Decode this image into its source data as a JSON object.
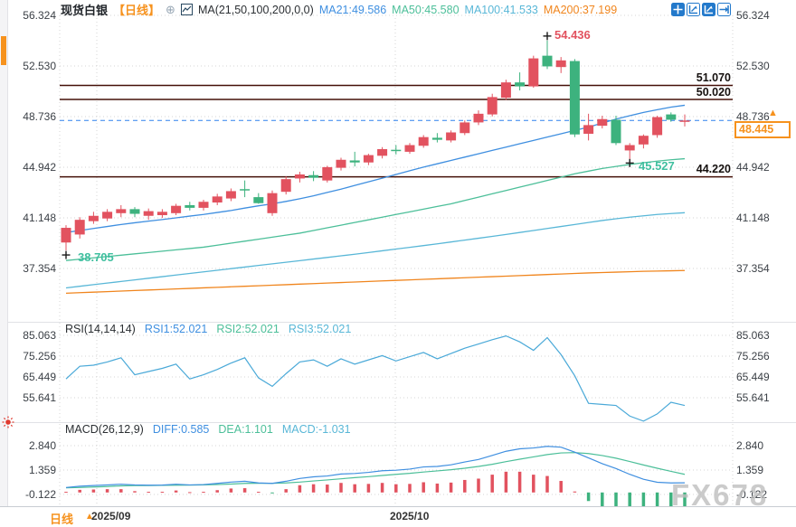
{
  "header": {
    "symbol": "现货白银",
    "period": "【日线】",
    "add_icon": "⊕",
    "ma_settings": "MA(21,50,100,200,0,0)",
    "ma_values": [
      {
        "label": "MA21:49.586",
        "color": "#3f8fe0"
      },
      {
        "label": "MA50:45.580",
        "color": "#4cbf99"
      },
      {
        "label": "MA100:41.533",
        "color": "#59b7d7"
      },
      {
        "label": "MA200:37.199",
        "color": "#f0851d"
      }
    ]
  },
  "toolbar": {
    "icons": [
      "crosshair-move",
      "axis-scale",
      "axis-scale-active",
      "go-to-latest"
    ]
  },
  "rsi_header": {
    "title": "RSI(14,14,14)",
    "values": [
      {
        "label": "RSI1:52.021",
        "color": "#3f8fe0"
      },
      {
        "label": "RSI2:52.021",
        "color": "#4cbf99"
      },
      {
        "label": "RSI3:52.021",
        "color": "#59b7d7"
      }
    ]
  },
  "macd_header": {
    "title": "MACD(26,12,9)",
    "values": [
      {
        "label": "DIFF:0.585",
        "color": "#3f8fe0"
      },
      {
        "label": "DEA:1.101",
        "color": "#4cbf99"
      },
      {
        "label": "MACD:-1.031",
        "color": "#59b7d7"
      }
    ]
  },
  "levels": [
    {
      "label": "51.070",
      "price": 51.07
    },
    {
      "label": "50.020",
      "price": 50.02
    },
    {
      "label": "44.220",
      "price": 44.22
    }
  ],
  "markers": {
    "high": {
      "label": "54.436"
    },
    "low": {
      "label": "38.705"
    },
    "swing_low": {
      "label": "45.527"
    }
  },
  "current_price": {
    "value": "48.445",
    "arrow": "▲"
  },
  "bottom_bar": {
    "period": "日线",
    "arrow": "▲"
  },
  "time_axis": {
    "labels": [
      {
        "text": "2025/09",
        "x": 101
      },
      {
        "text": "2025/10",
        "x": 431
      }
    ]
  },
  "watermark": "FX678",
  "colors": {
    "up_candle": "#e2525f",
    "down_candle": "#3db27e",
    "ma21": "#3f8fe0",
    "ma50": "#4cbf99",
    "ma100": "#59b7d7",
    "ma200": "#f0851d",
    "level_line": "#451008",
    "last_price_line": "#2f80ed",
    "accent_orange": "#f6921e",
    "toolbar_blue": "#2379cb",
    "rsi_line": "#4aa9d8",
    "watermark_gray": "#bfbfbf"
  },
  "chart_data": [
    {
      "type": "candlestick",
      "title": "现货白银 日线 (Spot Silver Daily)",
      "y_ticks": [
        56.324,
        52.53,
        48.736,
        44.942,
        41.148,
        37.354
      ],
      "ylim": [
        33.4,
        57.5
      ],
      "levels": [
        51.07,
        50.02,
        44.22
      ],
      "last_price": 48.445,
      "high_marker": {
        "index": 35,
        "value": 54.436
      },
      "low_marker": {
        "index": 0,
        "value": 38.705
      },
      "swing_low_marker": {
        "index": 41,
        "value": 45.527
      },
      "x_months": [
        "2025/09",
        "2025/10"
      ],
      "candles": [
        [
          39.3,
          40.6,
          38.705,
          40.4
        ],
        [
          39.9,
          41.2,
          39.6,
          41.0
        ],
        [
          40.9,
          41.6,
          40.7,
          41.3
        ],
        [
          41.1,
          41.8,
          40.9,
          41.6
        ],
        [
          41.5,
          42.1,
          41.2,
          41.8
        ],
        [
          41.8,
          41.95,
          41.2,
          41.45
        ],
        [
          41.3,
          41.85,
          41.0,
          41.65
        ],
        [
          41.35,
          41.8,
          41.15,
          41.6
        ],
        [
          41.5,
          42.2,
          41.35,
          42.05
        ],
        [
          42.1,
          42.35,
          41.7,
          41.9
        ],
        [
          41.9,
          42.5,
          41.7,
          42.35
        ],
        [
          42.3,
          42.95,
          42.1,
          42.75
        ],
        [
          42.6,
          43.35,
          42.4,
          43.15
        ],
        [
          43.3,
          43.95,
          42.7,
          43.2
        ],
        [
          42.7,
          43.0,
          42.2,
          42.25
        ],
        [
          41.5,
          43.2,
          41.3,
          43.0
        ],
        [
          43.1,
          44.25,
          42.9,
          44.05
        ],
        [
          44.1,
          44.6,
          43.8,
          44.4
        ],
        [
          44.35,
          44.65,
          43.9,
          44.15
        ],
        [
          43.95,
          45.05,
          43.8,
          44.95
        ],
        [
          44.9,
          45.65,
          44.7,
          45.5
        ],
        [
          45.45,
          46.1,
          45.0,
          45.3
        ],
        [
          45.3,
          45.95,
          45.1,
          45.85
        ],
        [
          45.8,
          46.45,
          45.6,
          46.3
        ],
        [
          46.25,
          46.6,
          45.9,
          46.15
        ],
        [
          46.1,
          46.75,
          45.95,
          46.6
        ],
        [
          46.55,
          47.35,
          46.4,
          47.2
        ],
        [
          47.15,
          47.5,
          46.8,
          47.0
        ],
        [
          46.95,
          47.7,
          46.8,
          47.55
        ],
        [
          47.5,
          48.45,
          47.35,
          48.3
        ],
        [
          48.3,
          49.2,
          48.1,
          48.95
        ],
        [
          48.9,
          50.45,
          48.75,
          50.2
        ],
        [
          50.15,
          51.5,
          50.0,
          51.3
        ],
        [
          51.3,
          52.05,
          50.7,
          51.0
        ],
        [
          51.0,
          53.3,
          50.9,
          53.1
        ],
        [
          53.3,
          54.436,
          52.3,
          52.5
        ],
        [
          52.45,
          53.2,
          52.0,
          52.95
        ],
        [
          52.9,
          53.05,
          47.2,
          47.4
        ],
        [
          47.45,
          48.95,
          46.95,
          48.1
        ],
        [
          48.05,
          48.8,
          47.85,
          48.55
        ],
        [
          48.5,
          48.8,
          46.6,
          46.75
        ],
        [
          46.2,
          46.75,
          45.527,
          46.6
        ],
        [
          46.65,
          47.4,
          46.35,
          47.3
        ],
        [
          47.35,
          48.8,
          47.15,
          48.7
        ],
        [
          48.9,
          49.05,
          48.35,
          48.5
        ],
        [
          48.35,
          48.9,
          48.0,
          48.445
        ]
      ],
      "overlays": [
        {
          "name": "MA21",
          "color": "#3f8fe0",
          "values": [
            40.05,
            40.2,
            40.35,
            40.5,
            40.65,
            40.78,
            40.9,
            41.02,
            41.15,
            41.28,
            41.4,
            41.55,
            41.7,
            41.88,
            42.05,
            42.2,
            42.38,
            42.58,
            42.8,
            43.05,
            43.3,
            43.58,
            43.85,
            44.12,
            44.4,
            44.68,
            44.95,
            45.2,
            45.45,
            45.7,
            45.95,
            46.2,
            46.45,
            46.7,
            46.95,
            47.2,
            47.45,
            47.7,
            47.95,
            48.25,
            48.55,
            48.8,
            49.05,
            49.25,
            49.45,
            49.586
          ]
        },
        {
          "name": "MA50",
          "color": "#4cbf99",
          "values": [
            37.95,
            38.05,
            38.15,
            38.25,
            38.35,
            38.45,
            38.55,
            38.65,
            38.75,
            38.85,
            38.95,
            39.1,
            39.25,
            39.4,
            39.55,
            39.7,
            39.85,
            40.0,
            40.2,
            40.4,
            40.6,
            40.8,
            41.0,
            41.2,
            41.4,
            41.6,
            41.8,
            42.0,
            42.2,
            42.45,
            42.7,
            42.95,
            43.2,
            43.45,
            43.7,
            43.95,
            44.2,
            44.45,
            44.65,
            44.85,
            45.0,
            45.15,
            45.28,
            45.4,
            45.5,
            45.58
          ]
        },
        {
          "name": "MA100",
          "color": "#59b7d7",
          "values": [
            35.9,
            36.02,
            36.14,
            36.26,
            36.38,
            36.5,
            36.62,
            36.74,
            36.86,
            36.98,
            37.1,
            37.22,
            37.34,
            37.46,
            37.58,
            37.7,
            37.82,
            37.94,
            38.06,
            38.18,
            38.3,
            38.42,
            38.55,
            38.68,
            38.81,
            38.94,
            39.07,
            39.2,
            39.34,
            39.48,
            39.62,
            39.76,
            39.9,
            40.05,
            40.2,
            40.35,
            40.5,
            40.65,
            40.8,
            40.95,
            41.08,
            41.2,
            41.3,
            41.4,
            41.47,
            41.533
          ]
        },
        {
          "name": "MA200",
          "color": "#f0851d",
          "values": [
            35.5,
            35.54,
            35.58,
            35.62,
            35.66,
            35.7,
            35.74,
            35.78,
            35.82,
            35.86,
            35.9,
            35.94,
            35.98,
            36.02,
            36.06,
            36.1,
            36.14,
            36.18,
            36.22,
            36.26,
            36.3,
            36.34,
            36.38,
            36.42,
            36.46,
            36.5,
            36.54,
            36.58,
            36.62,
            36.66,
            36.7,
            36.74,
            36.78,
            36.82,
            36.86,
            36.9,
            36.94,
            36.98,
            37.02,
            37.05,
            37.08,
            37.11,
            37.14,
            37.16,
            37.18,
            37.199
          ]
        }
      ]
    },
    {
      "type": "line",
      "title": "RSI(14,14,14)",
      "y_ticks": [
        85.063,
        75.256,
        65.449,
        55.641
      ],
      "color": "#4aa9d8",
      "values": [
        64.5,
        70.5,
        71,
        72.5,
        74.5,
        66.5,
        68,
        69.5,
        71.5,
        64.5,
        66.5,
        69,
        72,
        74.5,
        65,
        61,
        67,
        72.5,
        73.5,
        70.5,
        74,
        71.5,
        73.5,
        75.5,
        73,
        75,
        77,
        74,
        76.5,
        79,
        81,
        83,
        84.8,
        82,
        78,
        84,
        76,
        66,
        53,
        52.5,
        52,
        47,
        44.6,
        48,
        53.5,
        52
      ]
    },
    {
      "type": "macd",
      "title": "MACD(26,12,9)",
      "y_ticks": [
        2.84,
        1.359,
        -0.122
      ],
      "diff_color": "#3f8fe0",
      "dea_color": "#4cbf99",
      "diff": [
        0.3,
        0.38,
        0.42,
        0.46,
        0.5,
        0.46,
        0.44,
        0.45,
        0.5,
        0.46,
        0.48,
        0.55,
        0.63,
        0.68,
        0.58,
        0.55,
        0.68,
        0.85,
        0.95,
        1.0,
        1.12,
        1.15,
        1.22,
        1.32,
        1.35,
        1.42,
        1.55,
        1.58,
        1.68,
        1.85,
        2.0,
        2.25,
        2.5,
        2.65,
        2.7,
        2.8,
        2.75,
        2.45,
        2.1,
        1.75,
        1.45,
        1.1,
        0.8,
        0.62,
        0.58,
        0.585
      ],
      "dea": [
        0.28,
        0.3,
        0.33,
        0.36,
        0.4,
        0.42,
        0.42,
        0.43,
        0.44,
        0.45,
        0.46,
        0.48,
        0.51,
        0.55,
        0.56,
        0.56,
        0.58,
        0.63,
        0.7,
        0.76,
        0.83,
        0.9,
        0.96,
        1.03,
        1.1,
        1.16,
        1.24,
        1.31,
        1.38,
        1.47,
        1.58,
        1.71,
        1.87,
        2.02,
        2.16,
        2.3,
        2.4,
        2.42,
        2.36,
        2.24,
        2.08,
        1.88,
        1.67,
        1.47,
        1.28,
        1.101
      ]
    }
  ]
}
